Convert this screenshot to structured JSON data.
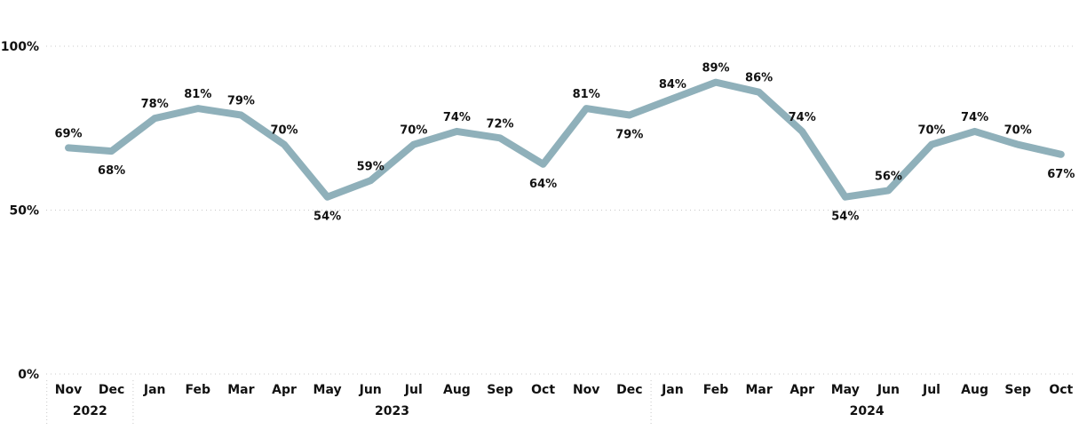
{
  "chart_data": {
    "type": "line",
    "title": "",
    "xlabel": "",
    "ylabel": "",
    "ylim": [
      0,
      100
    ],
    "y_ticks": [
      "0%",
      "50%",
      "100%"
    ],
    "grid": true,
    "line_color": "#8fb0ba",
    "categories": [
      "Nov",
      "Dec",
      "Jan",
      "Feb",
      "Mar",
      "Apr",
      "May",
      "Jun",
      "Jul",
      "Aug",
      "Sep",
      "Oct",
      "Nov",
      "Dec",
      "Jan",
      "Feb",
      "Mar",
      "Apr",
      "May",
      "Jun",
      "Jul",
      "Aug",
      "Sep",
      "Oct"
    ],
    "years": [
      {
        "label": "2022",
        "span": 2
      },
      {
        "label": "2023",
        "span": 12
      },
      {
        "label": "2024",
        "span": 10
      }
    ],
    "series": [
      {
        "values": [
          69,
          68,
          78,
          81,
          79,
          70,
          54,
          59,
          70,
          74,
          72,
          64,
          81,
          79,
          84,
          89,
          86,
          74,
          54,
          56,
          70,
          74,
          70,
          67
        ],
        "data_labels": [
          "69%",
          "68%",
          "78%",
          "81%",
          "79%",
          "70%",
          "54%",
          "59%",
          "70%",
          "74%",
          "72%",
          "64%",
          "81%",
          "79%",
          "84%",
          "89%",
          "86%",
          "74%",
          "54%",
          "56%",
          "70%",
          "74%",
          "70%",
          "67%"
        ]
      }
    ]
  }
}
